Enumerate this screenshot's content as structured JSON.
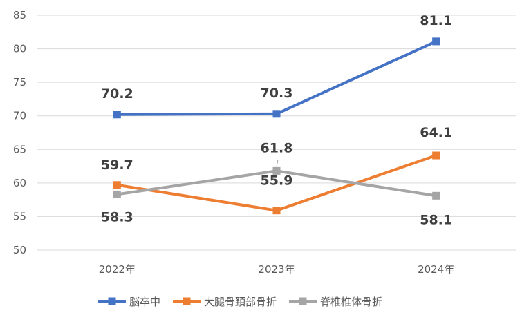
{
  "chart_data": {
    "type": "line",
    "categories": [
      "2022年",
      "2023年",
      "2024年"
    ],
    "series": [
      {
        "name": "脳卒中",
        "values": [
          70.2,
          70.3,
          81.1
        ],
        "color": "#4472C4"
      },
      {
        "name": "大腿骨頚部骨折",
        "values": [
          59.7,
          55.9,
          64.1
        ],
        "color": "#ED7D31"
      },
      {
        "name": "脊椎椎体骨折",
        "values": [
          58.3,
          61.8,
          58.1
        ],
        "color": "#A5A5A5"
      }
    ],
    "ylim": [
      50,
      85
    ],
    "yticks": [
      50,
      55,
      60,
      65,
      70,
      75,
      80,
      85
    ],
    "grid": true,
    "legend": "bottom",
    "data_labels": {
      "脳卒中": [
        "70.2",
        "70.3",
        "81.1"
      ],
      "大腿骨頚部骨折": [
        "59.7",
        "55.9",
        "64.1"
      ],
      "脊椎椎体骨折": [
        "58.3",
        "61.8",
        "58.1"
      ]
    }
  }
}
